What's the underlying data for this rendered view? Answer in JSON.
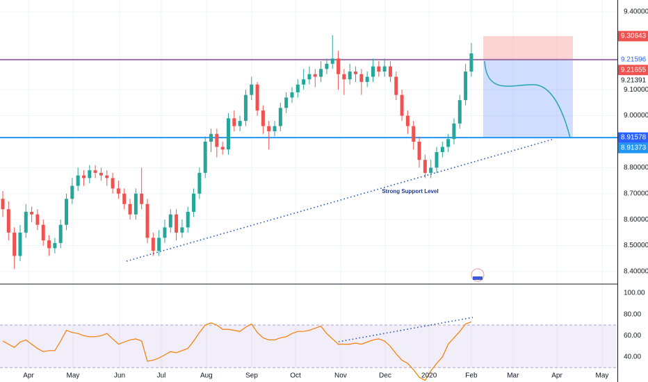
{
  "chart_data": [
    {
      "type": "candlestick",
      "up_color": "#26a69a",
      "down_color": "#ef5350",
      "open": [
        8.68,
        8.64,
        8.55,
        8.46,
        8.55,
        8.63,
        8.62,
        8.58,
        8.52,
        8.49,
        8.51,
        8.58,
        8.68,
        8.73,
        8.77,
        8.76,
        8.79,
        8.78,
        8.77,
        8.76,
        8.72,
        8.7,
        8.66,
        8.62,
        8.7,
        8.66,
        8.53,
        8.48,
        8.53,
        8.57,
        8.62,
        8.55,
        8.57,
        8.63,
        8.7,
        8.78,
        8.9,
        8.93,
        8.88,
        8.87,
        8.99,
        8.96,
        8.98,
        9.08,
        9.12,
        9.02,
        8.96,
        8.94,
        8.96,
        9.03,
        9.07,
        9.09,
        9.12,
        9.14,
        9.16,
        9.15,
        9.18,
        9.2,
        9.22,
        9.16,
        9.14,
        9.17,
        9.16,
        9.13,
        9.15,
        9.19,
        9.17,
        9.19,
        9.15,
        9.08,
        9.0,
        8.96,
        8.9,
        8.83,
        8.78,
        8.8,
        8.86,
        8.88,
        8.91,
        8.97,
        9.06,
        9.17
      ],
      "high": [
        8.71,
        8.67,
        8.57,
        8.58,
        8.66,
        8.65,
        8.64,
        8.6,
        8.54,
        8.53,
        8.6,
        8.7,
        8.76,
        8.8,
        8.79,
        8.81,
        8.81,
        8.8,
        8.79,
        8.78,
        8.75,
        8.72,
        8.68,
        8.72,
        8.8,
        8.68,
        8.55,
        8.56,
        8.6,
        8.64,
        8.64,
        8.6,
        8.65,
        8.72,
        8.8,
        8.92,
        8.95,
        8.95,
        8.9,
        9.01,
        9.02,
        9.0,
        9.1,
        9.15,
        9.13,
        9.04,
        8.98,
        8.98,
        9.05,
        9.09,
        9.11,
        9.14,
        9.18,
        9.19,
        9.18,
        9.21,
        9.22,
        9.31,
        9.25,
        9.18,
        9.2,
        9.19,
        9.18,
        9.17,
        9.22,
        9.21,
        9.22,
        9.21,
        9.17,
        9.1,
        9.02,
        8.98,
        8.92,
        8.85,
        8.83,
        8.88,
        8.9,
        8.93,
        8.99,
        9.08,
        9.2,
        9.28
      ],
      "low": [
        8.61,
        8.52,
        8.41,
        8.44,
        8.53,
        8.59,
        8.56,
        8.5,
        8.46,
        8.47,
        8.49,
        8.56,
        8.66,
        8.71,
        8.73,
        8.74,
        8.76,
        8.75,
        8.73,
        8.7,
        8.68,
        8.64,
        8.6,
        8.6,
        8.64,
        8.51,
        8.46,
        8.46,
        8.51,
        8.55,
        8.52,
        8.53,
        8.55,
        8.61,
        8.68,
        8.76,
        8.86,
        8.84,
        8.85,
        8.85,
        8.94,
        8.94,
        8.96,
        9.06,
        9.0,
        8.93,
        8.87,
        8.92,
        8.94,
        9.01,
        9.05,
        9.07,
        9.1,
        9.12,
        9.11,
        9.13,
        9.16,
        9.18,
        9.1,
        9.08,
        9.12,
        9.13,
        9.08,
        9.11,
        9.13,
        9.15,
        9.15,
        9.13,
        9.06,
        8.98,
        8.93,
        8.87,
        8.8,
        8.76,
        8.76,
        8.78,
        8.84,
        8.86,
        8.89,
        8.95,
        9.04,
        9.15
      ],
      "close": [
        8.64,
        8.55,
        8.46,
        8.55,
        8.63,
        8.62,
        8.58,
        8.52,
        8.49,
        8.51,
        8.58,
        8.68,
        8.73,
        8.77,
        8.76,
        8.79,
        8.78,
        8.77,
        8.76,
        8.72,
        8.7,
        8.66,
        8.62,
        8.7,
        8.66,
        8.53,
        8.48,
        8.53,
        8.57,
        8.62,
        8.55,
        8.57,
        8.63,
        8.7,
        8.78,
        8.9,
        8.93,
        8.88,
        8.87,
        8.99,
        8.96,
        8.98,
        9.08,
        9.12,
        9.02,
        8.96,
        8.94,
        8.96,
        9.03,
        9.07,
        9.09,
        9.12,
        9.14,
        9.16,
        9.15,
        9.18,
        9.2,
        9.22,
        9.16,
        9.14,
        9.17,
        9.16,
        9.13,
        9.15,
        9.19,
        9.17,
        9.19,
        9.15,
        9.08,
        9.0,
        8.96,
        8.9,
        8.83,
        8.78,
        8.8,
        8.86,
        8.88,
        8.91,
        8.97,
        9.06,
        9.17,
        9.24
      ],
      "xlim": [
        -0.48,
        106.25
      ],
      "xticks": [
        {
          "value": 4.45,
          "label": "Apr"
        },
        {
          "value": 12.14,
          "label": "May"
        },
        {
          "value": 20.19,
          "label": "Jun"
        },
        {
          "value": 27.4,
          "label": "Jul"
        },
        {
          "value": 35.2,
          "label": "Aug"
        },
        {
          "value": 43.03,
          "label": "Sep"
        },
        {
          "value": 50.6,
          "label": "Oct"
        },
        {
          "value": 58.4,
          "label": "Nov"
        },
        {
          "value": 66.1,
          "label": "Dec"
        },
        {
          "value": 73.7,
          "label": "2020"
        },
        {
          "value": 81.0,
          "label": "Feb"
        },
        {
          "value": 88.2,
          "label": "Mar"
        },
        {
          "value": 95.8,
          "label": "Apr"
        },
        {
          "value": 103.6,
          "label": "May"
        }
      ],
      "ylim": [
        8.3545,
        9.4455
      ],
      "yticks": [
        {
          "value": 9.4,
          "label": "9.40000"
        },
        {
          "value": 9.1,
          "label": "9.10000"
        },
        {
          "value": 9.0,
          "label": "9.00000"
        },
        {
          "value": 8.8,
          "label": "8.80000"
        },
        {
          "value": 8.7,
          "label": "8.70000"
        },
        {
          "value": 8.6,
          "label": "8.60000"
        },
        {
          "value": 8.5,
          "label": "8.50000"
        },
        {
          "value": 8.4,
          "label": "8.40000"
        }
      ],
      "grid": true,
      "annotation": "Strong Support Level",
      "price_labels": [
        {
          "value": 9.30643,
          "bg": "#ef5350",
          "fg": "#ffffff"
        },
        {
          "value": 9.21596,
          "bg": "#ffffff",
          "fg": "#2962ff",
          "line": "#9c6ea8"
        },
        {
          "value": 9.21655,
          "bg": "#ef5350",
          "fg": "#ffffff"
        },
        {
          "value": 9.21391,
          "bg": "#ffffff",
          "fg": "#131722"
        },
        {
          "value": 8.91578,
          "bg": "#2962ff",
          "fg": "#ffffff",
          "line": "#2196f3"
        },
        {
          "value": 8.91373,
          "bg": "#2196f3",
          "fg": "#ffffff"
        }
      ],
      "position": {
        "x": [
          83.05,
          98.55
        ],
        "stop": 9.30643,
        "entry": 9.21596,
        "target": 8.91578
      }
    },
    {
      "type": "line",
      "color": "#f57c00",
      "values": [
        55,
        52,
        49,
        54,
        56,
        52,
        48,
        45,
        46,
        46,
        55,
        65,
        63,
        62,
        60,
        59,
        59,
        60,
        62,
        57,
        52,
        54,
        56,
        57,
        55,
        36,
        37,
        39,
        42,
        45,
        44,
        46,
        48,
        55,
        63,
        70,
        72,
        70,
        66,
        66,
        65,
        64,
        68,
        71,
        63,
        58,
        56,
        56,
        58,
        59,
        62,
        64,
        64,
        65,
        67,
        69,
        62,
        57,
        52,
        52,
        52,
        53,
        52,
        54,
        56,
        57,
        55,
        50,
        43,
        37,
        34,
        28,
        21,
        18,
        27,
        34,
        40,
        52,
        58,
        64,
        71,
        73
      ],
      "ylim": [
        16.5,
        107.8
      ],
      "yticks": [
        {
          "value": 100,
          "label": "100.00"
        },
        {
          "value": 80,
          "label": "80.00"
        },
        {
          "value": 60,
          "label": "60.00"
        },
        {
          "value": 40,
          "label": "40.00"
        }
      ],
      "band": [
        30,
        70
      ]
    }
  ]
}
